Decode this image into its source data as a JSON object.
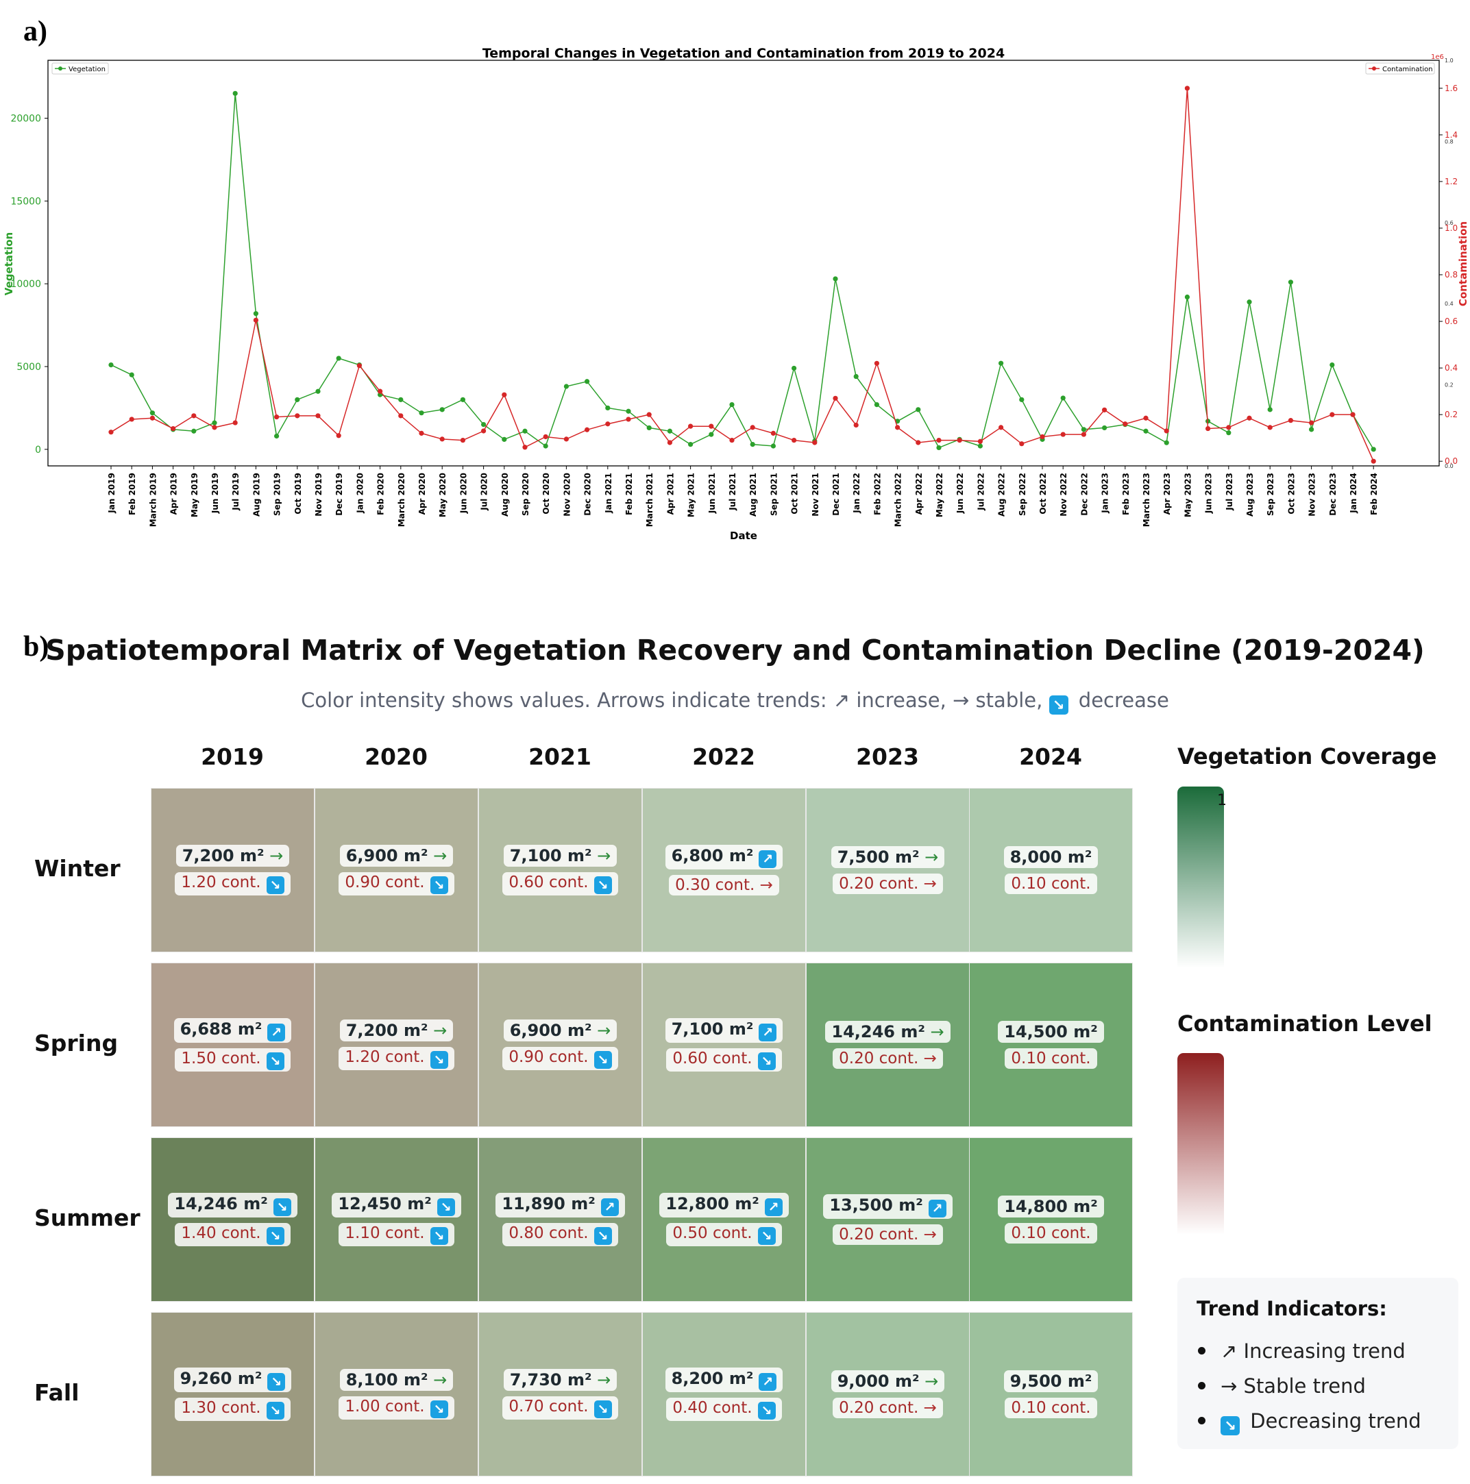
{
  "panel_labels": {
    "a": "a)",
    "b": "b)"
  },
  "chart_data": [
    {
      "type": "line",
      "title": "Temporal Changes in Vegetation and Contamination from 2019 to 2024",
      "xlabel": "Date",
      "ylabel_left": "Vegetation",
      "ylabel_right": "Contamination",
      "right_axis_exponent": "1e6",
      "categories": [
        "Jan 2019",
        "Feb 2019",
        "March 2019",
        "Apr 2019",
        "May 2019",
        "Jun 2019",
        "Jul 2019",
        "Aug 2019",
        "Sep 2019",
        "Oct 2019",
        "Nov 2019",
        "Dec 2019",
        "Jan 2020",
        "Feb 2020",
        "March 2020",
        "Apr 2020",
        "May 2020",
        "Jun 2020",
        "Jul 2020",
        "Aug 2020",
        "Sep 2020",
        "Oct 2020",
        "Nov 2020",
        "Dec 2020",
        "Jan 2021",
        "Feb 2021",
        "March 2021",
        "Apr 2021",
        "May 2021",
        "Jun 2021",
        "Jul 2021",
        "Aug 2021",
        "Sep 2021",
        "Oct 2021",
        "Nov 2021",
        "Dec 2021",
        "Jan 2022",
        "Feb 2022",
        "March 2022",
        "Apr 2022",
        "May 2022",
        "Jun 2022",
        "Jul 2022",
        "Aug 2022",
        "Sep 2022",
        "Oct 2022",
        "Nov 2022",
        "Dec 2022",
        "Jan 2023",
        "Feb 2023",
        "March 2023",
        "Apr 2023",
        "May 2023",
        "Jun 2023",
        "Jul 2023",
        "Aug 2023",
        "Sep 2023",
        "Oct 2023",
        "Nov 2023",
        "Dec 2023",
        "Jan 2024",
        "Feb 2024"
      ],
      "series": [
        {
          "name": "Vegetation",
          "axis": "left",
          "color": "#2ca02c",
          "values": [
            5100,
            4500,
            2200,
            1200,
            1100,
            1600,
            21500,
            8200,
            800,
            3000,
            3500,
            5500,
            5100,
            3300,
            3000,
            2200,
            2400,
            3000,
            1500,
            600,
            1100,
            200,
            3800,
            4100,
            2500,
            2300,
            1300,
            1100,
            300,
            900,
            2700,
            300,
            200,
            4900,
            500,
            10300,
            4400,
            2700,
            1700,
            2400,
            100,
            600,
            200,
            5200,
            3000,
            600,
            3100,
            1200,
            1300,
            1500,
            1100,
            400,
            9200,
            1700,
            1000,
            8900,
            2400,
            10100,
            1200,
            5100,
            2100,
            0
          ]
        },
        {
          "name": "Contamination",
          "axis": "right",
          "color": "#d62728",
          "values": [
            0.125,
            0.18,
            0.185,
            0.14,
            0.195,
            0.145,
            0.165,
            0.605,
            0.19,
            0.195,
            0.195,
            0.11,
            0.41,
            0.3,
            0.195,
            0.12,
            0.095,
            0.09,
            0.13,
            0.285,
            0.06,
            0.105,
            0.095,
            0.135,
            0.16,
            0.18,
            0.2,
            0.08,
            0.15,
            0.15,
            0.09,
            0.145,
            0.12,
            0.09,
            0.08,
            0.27,
            0.155,
            0.42,
            0.145,
            0.08,
            0.09,
            0.09,
            0.085,
            0.145,
            0.075,
            0.105,
            0.115,
            0.115,
            0.22,
            0.16,
            0.185,
            0.13,
            1.6,
            0.14,
            0.145,
            0.185,
            0.145,
            0.175,
            0.165,
            0.2,
            0.2,
            0.0
          ]
        }
      ],
      "left_ylim": [
        -1000,
        23500
      ],
      "left_yticks": [
        0,
        5000,
        10000,
        15000,
        20000
      ],
      "right_ylim": [
        -0.02,
        1.72
      ],
      "right_yticks": [
        0.0,
        0.2,
        0.4,
        0.6,
        0.8,
        1.0,
        1.2,
        1.4,
        1.6
      ],
      "right_yticks_minor": [
        0.0,
        0.2,
        0.4,
        0.6,
        0.8,
        1.0
      ],
      "legend": {
        "left": "top-left",
        "right": "top-right"
      },
      "grid": false
    },
    {
      "type": "heatmap",
      "title": "Spatiotemporal Matrix of Vegetation Recovery and Contamination Decline (2019-2024)",
      "subtitle": {
        "prefix": "Color intensity shows values. Arrows indicate trends: ",
        "up": "↗",
        "up_text": " increase, ",
        "stable": "→",
        "stable_text": " stable, ",
        "down_icon": "↘",
        "down_text": " decrease"
      },
      "columns": [
        "2019",
        "2020",
        "2021",
        "2022",
        "2023",
        "2024"
      ],
      "rows": [
        {
          "season": "Winter",
          "cells": [
            {
              "veg": "7,200 m²",
              "veg_trend": "stable",
              "cont": "1.20 cont.",
              "cont_trend": "down",
              "color": "#ada592"
            },
            {
              "veg": "6,900 m²",
              "veg_trend": "stable",
              "cont": "0.90 cont.",
              "cont_trend": "down",
              "color": "#b1b29b"
            },
            {
              "veg": "7,100 m²",
              "veg_trend": "stable",
              "cont": "0.60 cont.",
              "cont_trend": "down",
              "color": "#b3bda4"
            },
            {
              "veg": "6,800 m²",
              "veg_trend": "up",
              "cont": "0.30 cont.",
              "cont_trend": "stable",
              "color": "#b5c7ae"
            },
            {
              "veg": "7,500 m²",
              "veg_trend": "stable",
              "cont": "0.20 cont.",
              "cont_trend": "stable",
              "color": "#b1cab1"
            },
            {
              "veg": "8,000 m²",
              "veg_trend": "none",
              "cont": "0.10 cont.",
              "cont_trend": "none",
              "color": "#adc9ad"
            }
          ]
        },
        {
          "season": "Spring",
          "cells": [
            {
              "veg": "6,688 m²",
              "veg_trend": "up",
              "cont": "1.50 cont.",
              "cont_trend": "down",
              "color": "#b19f8f"
            },
            {
              "veg": "7,200 m²",
              "veg_trend": "stable",
              "cont": "1.20 cont.",
              "cont_trend": "down",
              "color": "#ada592"
            },
            {
              "veg": "6,900 m²",
              "veg_trend": "stable",
              "cont": "0.90 cont.",
              "cont_trend": "down",
              "color": "#b1b29b"
            },
            {
              "veg": "7,100 m²",
              "veg_trend": "up",
              "cont": "0.60 cont.",
              "cont_trend": "down",
              "color": "#b3bda4"
            },
            {
              "veg": "14,246 m²",
              "veg_trend": "stable",
              "cont": "0.20 cont.",
              "cont_trend": "stable",
              "color": "#72a572"
            },
            {
              "veg": "14,500 m²",
              "veg_trend": "none",
              "cont": "0.10 cont.",
              "cont_trend": "none",
              "color": "#6fa76f"
            }
          ]
        },
        {
          "season": "Summer",
          "cells": [
            {
              "veg": "14,246 m²",
              "veg_trend": "down",
              "cont": "1.40 cont.",
              "cont_trend": "down",
              "color": "#6b825a"
            },
            {
              "veg": "12,450 m²",
              "veg_trend": "down",
              "cont": "1.10 cont.",
              "cont_trend": "down",
              "color": "#7a946b"
            },
            {
              "veg": "11,890 m²",
              "veg_trend": "up",
              "cont": "0.80 cont.",
              "cont_trend": "down",
              "color": "#849d78"
            },
            {
              "veg": "12,800 m²",
              "veg_trend": "up",
              "cont": "0.50 cont.",
              "cont_trend": "down",
              "color": "#7ca474"
            },
            {
              "veg": "13,500 m²",
              "veg_trend": "up",
              "cont": "0.20 cont.",
              "cont_trend": "stable",
              "color": "#76a773"
            },
            {
              "veg": "14,800 m²",
              "veg_trend": "none",
              "cont": "0.10 cont.",
              "cont_trend": "none",
              "color": "#6ea76d"
            }
          ]
        },
        {
          "season": "Fall",
          "cells": [
            {
              "veg": "9,260 m²",
              "veg_trend": "down",
              "cont": "1.30 cont.",
              "cont_trend": "down",
              "color": "#9c9a80"
            },
            {
              "veg": "8,100 m²",
              "veg_trend": "stable",
              "cont": "1.00 cont.",
              "cont_trend": "down",
              "color": "#a8aa92"
            },
            {
              "veg": "7,730 m²",
              "veg_trend": "stable",
              "cont": "0.70 cont.",
              "cont_trend": "down",
              "color": "#acb99e"
            },
            {
              "veg": "8,200 m²",
              "veg_trend": "up",
              "cont": "0.40 cont.",
              "cont_trend": "down",
              "color": "#a8c0a2"
            },
            {
              "veg": "9,000 m²",
              "veg_trend": "stable",
              "cont": "0.20 cont.",
              "cont_trend": "stable",
              "color": "#a2c2a1"
            },
            {
              "veg": "9,500 m²",
              "veg_trend": "none",
              "cont": "0.10 cont.",
              "cont_trend": "none",
              "color": "#9dc19d"
            }
          ]
        }
      ],
      "legend": {
        "vegetation_title": "Vegetation Coverage",
        "vegetation_tick": "1",
        "vegetation_gradient": [
          "#1b6b3a",
          "#ffffff"
        ],
        "contamination_title": "Contamination Level",
        "contamination_gradient": [
          "#8e1f1f",
          "#ffffff"
        ]
      },
      "trend_indicators": {
        "title": "Trend Indicators:",
        "items": [
          {
            "symbol": "↗",
            "label": " Increasing trend"
          },
          {
            "symbol": "→",
            "label": " Stable trend"
          },
          {
            "symbol": "↘",
            "label": " Decreasing trend",
            "boxed": true
          }
        ]
      }
    }
  ]
}
